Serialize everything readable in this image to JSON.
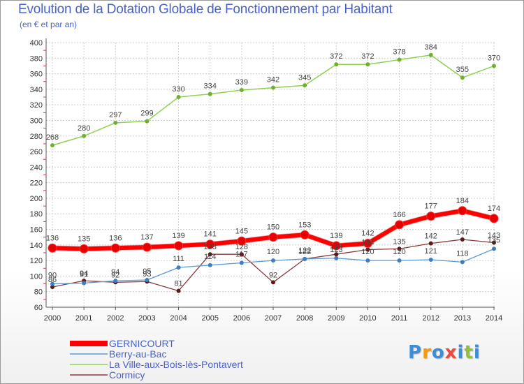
{
  "chart_data": {
    "type": "line",
    "title": "Evolution de la Dotation Globale de Fonctionnement par Habitant",
    "subtitle": "(en € et par an)",
    "xlabel": "",
    "ylabel": "",
    "x": [
      "2000",
      "2001",
      "2002",
      "2003",
      "2004",
      "2005",
      "2006",
      "2007",
      "2008",
      "2009",
      "2010",
      "2011",
      "2012",
      "2013",
      "2014"
    ],
    "ylim": [
      60,
      400
    ],
    "yticks": [
      60,
      80,
      100,
      120,
      140,
      160,
      180,
      200,
      220,
      240,
      260,
      280,
      300,
      320,
      340,
      360,
      380,
      400
    ],
    "grid": true,
    "series": [
      {
        "name": "La Ville-aux-Bois-lès-Pontavert",
        "color": "#8fd14f",
        "marker": "#6fb02f",
        "width": 1.5,
        "values": [
          268,
          280,
          297,
          299,
          330,
          334,
          339,
          342,
          345,
          372,
          372,
          378,
          384,
          355,
          370
        ]
      },
      {
        "name": "Cormicy",
        "color": "#8b3a3a",
        "marker": "#5a1a1a",
        "width": 1.3,
        "values": [
          86,
          94,
          92,
          93,
          81,
          128,
          128,
          92,
          122,
          128,
          134,
          135,
          142,
          147,
          143
        ]
      },
      {
        "name": "Berry-au-Bac",
        "color": "#5b9bd5",
        "marker": "#3d7fc0",
        "width": 1.3,
        "values": [
          90,
          91,
          94,
          95,
          111,
          114,
          117,
          120,
          122,
          123,
          120,
          120,
          121,
          118,
          135
        ]
      },
      {
        "name": "GERNICOURT",
        "color": "#ff0000",
        "marker": "#e60000",
        "width": 6,
        "values": [
          136,
          135,
          136,
          137,
          139,
          141,
          145,
          150,
          153,
          139,
          142,
          166,
          177,
          184,
          174
        ]
      }
    ],
    "labels": [
      {
        "series": "La Ville-aux-Bois-lès-Pontavert",
        "values": [
          "268",
          "280",
          "297",
          "299",
          "330",
          "334",
          "339",
          "342",
          "345",
          "372",
          "372",
          "378",
          "384",
          "355",
          "370"
        ]
      },
      {
        "series": "GERNICOURT",
        "values": [
          "136",
          "135",
          "136",
          "137",
          "139",
          "141",
          "145",
          "150",
          "153",
          "139",
          "142",
          "166",
          "177",
          "184",
          "174"
        ]
      },
      {
        "series": "Cormicy",
        "values": [
          "86",
          "94",
          "92",
          "93",
          "81",
          "128",
          "128",
          "92",
          "122",
          "128",
          "134",
          "135",
          "142",
          "147",
          "143"
        ]
      },
      {
        "series": "Berry-au-Bac",
        "values": [
          "90",
          "91",
          "94",
          "95",
          "111",
          "114",
          "117",
          "120",
          "122",
          "123",
          "120",
          "120",
          "121",
          "118",
          "135"
        ]
      }
    ],
    "legend": [
      {
        "label": "GERNICOURT",
        "color": "#ff0000"
      },
      {
        "label": "Berry-au-Bac",
        "color": "#5b9bd5"
      },
      {
        "label": "La Ville-aux-Bois-lès-Pontavert",
        "color": "#8fd14f"
      },
      {
        "label": "Cormicy",
        "color": "#8b3a3a"
      }
    ]
  },
  "logo": {
    "letters": [
      "P",
      "r",
      "o",
      "x",
      "i",
      "t",
      "i"
    ],
    "colors": [
      "#3a8fd8",
      "#f39c12",
      "#3a8fd8",
      "#e74c3c",
      "#3a8fd8",
      "#8fc13f",
      "#3a8fd8"
    ]
  }
}
